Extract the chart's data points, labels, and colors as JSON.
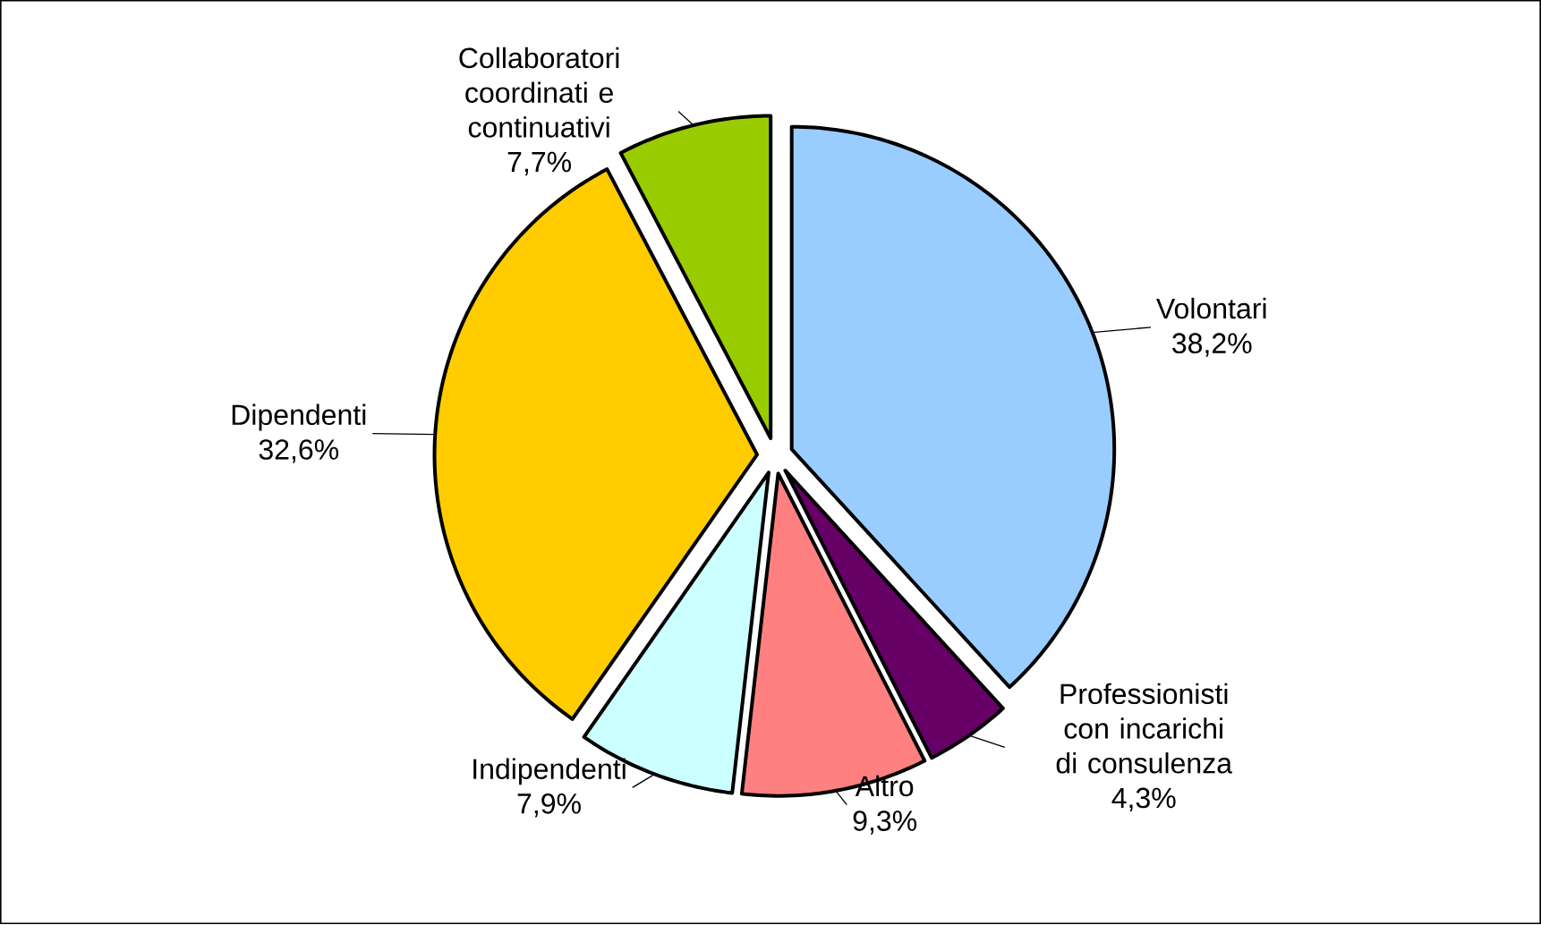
{
  "chart_data": {
    "type": "pie",
    "categories": [
      "Volontari",
      "Professionisti con incarichi di consulenza",
      "Altro",
      "Indipendenti",
      "Dipendenti",
      "Collaboratori coordinati e continuativi"
    ],
    "values": [
      38.2,
      4.3,
      9.3,
      7.9,
      32.6,
      7.7
    ],
    "value_labels": [
      "38,2%",
      "4,3%",
      "9,3%",
      "7,9%",
      "32,6%",
      "7,7%"
    ],
    "colors": [
      "#99ccff",
      "#660066",
      "#ff8080",
      "#ccffff",
      "#ffcc00",
      "#99cc00"
    ]
  }
}
